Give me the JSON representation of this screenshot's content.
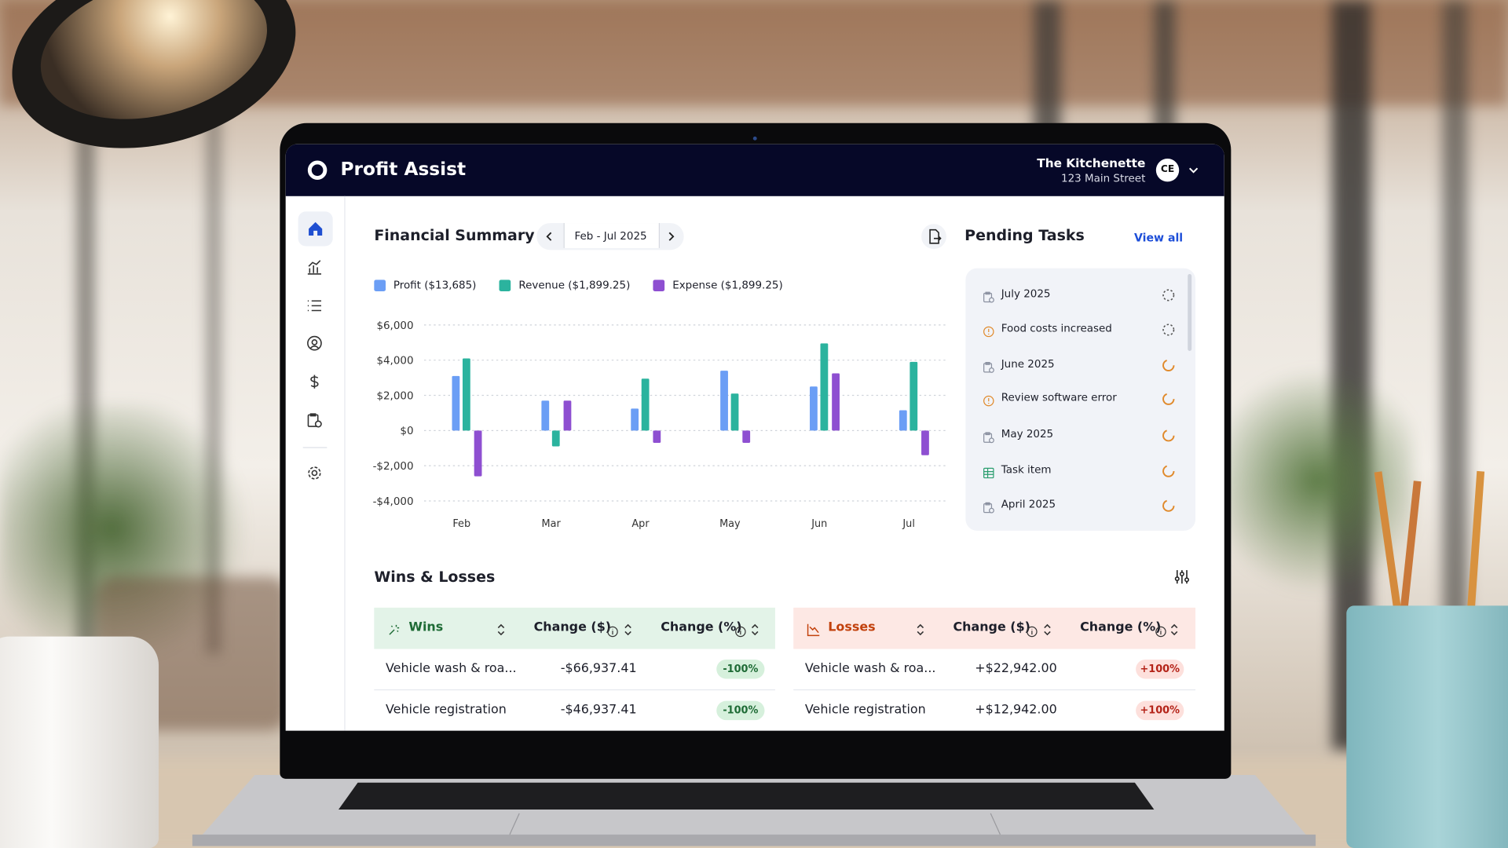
{
  "header": {
    "app_name": "Profit Assist",
    "business_name": "The Kitchenette",
    "address": "123 Main Street",
    "avatar_initials": "CE"
  },
  "financial_summary": {
    "title": "Financial Summary",
    "date_range": "Feb - Jul 2025"
  },
  "chart_data": {
    "type": "bar",
    "categories": [
      "Feb",
      "Mar",
      "Apr",
      "May",
      "Jun",
      "Jul"
    ],
    "series": [
      {
        "name": "Profit ($13,685)",
        "color": "#6b9ef5",
        "values": [
          3100,
          1700,
          1250,
          3400,
          2500,
          1150
        ]
      },
      {
        "name": "Revenue ($1,899.25)",
        "color": "#2bb39e",
        "values": [
          4100,
          -900,
          2950,
          2100,
          4950,
          3900
        ]
      },
      {
        "name": "Expense ($1,899.25)",
        "color": "#8e4fd1",
        "values": [
          -2600,
          1700,
          -700,
          -700,
          3250,
          -1400
        ]
      }
    ],
    "ylim": [
      -4000,
      6000
    ],
    "yticks": [
      {
        "value": -4000,
        "label": "-$4,000"
      },
      {
        "value": -2000,
        "label": "-$2,000"
      },
      {
        "value": 0,
        "label": "$0"
      },
      {
        "value": 2000,
        "label": "$2,000"
      },
      {
        "value": 4000,
        "label": "$4,000"
      },
      {
        "value": 6000,
        "label": "$6,000"
      }
    ],
    "grid": true
  },
  "pending_tasks": {
    "title": "Pending Tasks",
    "view_all": "View all",
    "items": [
      "July 2025",
      "Food costs increased",
      "June 2025",
      "Review software error",
      "May 2025",
      "Task item",
      "April 2025"
    ]
  },
  "wins_losses": {
    "title": "Wins & Losses",
    "wins": {
      "header": [
        "Wins",
        "Change ($)",
        "Change (%)"
      ],
      "rows": [
        [
          "Vehicle wash & roa...",
          "-$66,937.41",
          "-100%"
        ],
        [
          "Vehicle registration",
          "-$46,937.41",
          "-100%"
        ]
      ]
    },
    "losses": {
      "header": [
        "Losses",
        "Change ($)",
        "Change (%)"
      ],
      "rows": [
        [
          "Vehicle wash & roa...",
          "+$22,942.00",
          "+100%"
        ],
        [
          "Vehicle registration",
          "+$12,942.00",
          "+100%"
        ]
      ]
    }
  }
}
